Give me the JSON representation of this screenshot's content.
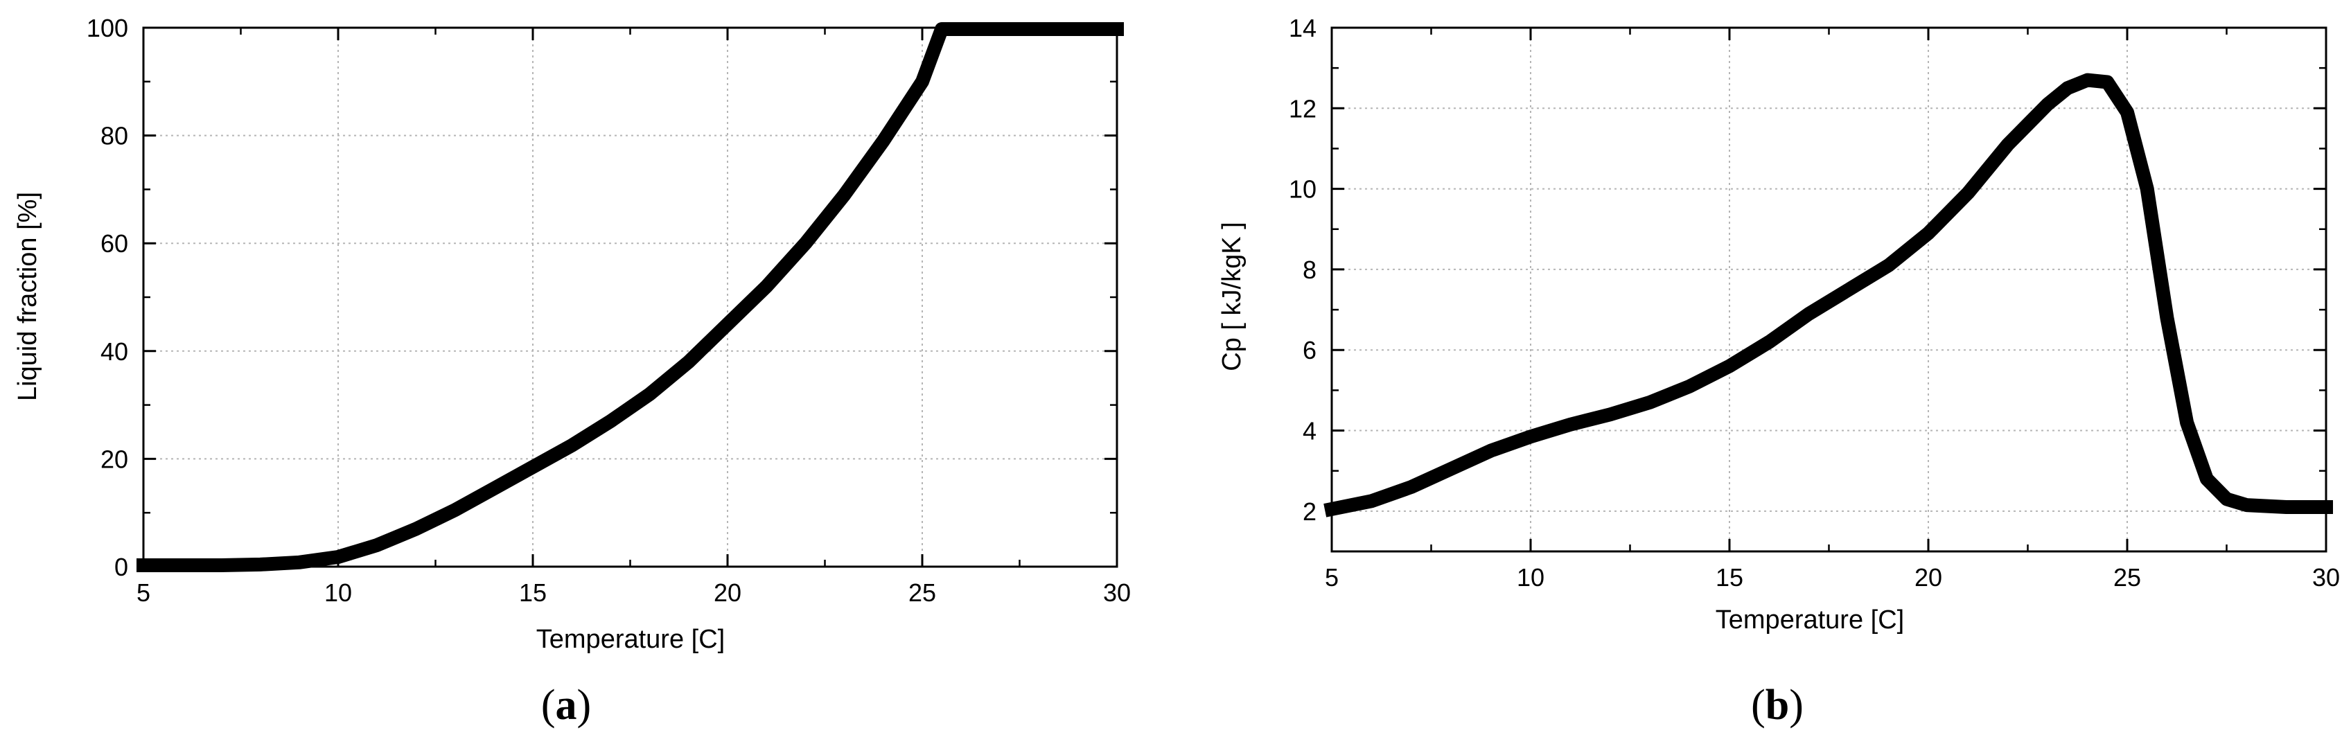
{
  "chart_data": [
    {
      "type": "line",
      "panel_label": {
        "open": "(",
        "letter": "a",
        "close": ")"
      },
      "xlabel": "Temperature [C]",
      "ylabel": "Liquid fraction [%]",
      "xlim": [
        5,
        30
      ],
      "ylim": [
        0,
        100
      ],
      "xticks": [
        5,
        10,
        15,
        20,
        25,
        30
      ],
      "yticks": [
        0,
        20,
        40,
        60,
        80,
        100
      ],
      "grid": true,
      "series": [
        {
          "x": [
            5,
            6,
            7,
            8,
            9,
            10,
            11,
            12,
            13,
            14,
            15,
            16,
            17,
            18,
            19,
            20,
            21,
            22,
            23,
            24,
            25,
            25.5,
            26,
            27,
            28,
            29,
            30
          ],
          "y": [
            0,
            0,
            0.2,
            0.4,
            0.8,
            1.8,
            4,
            7,
            10.5,
            14.5,
            18.5,
            22.5,
            27,
            32,
            38,
            45,
            52,
            60,
            69,
            79,
            90,
            100,
            100,
            100,
            100,
            100,
            100
          ]
        }
      ]
    },
    {
      "type": "line",
      "panel_label": {
        "open": "(",
        "letter": "b",
        "close": ")"
      },
      "xlabel": "Temperature [C]",
      "ylabel": "Cp [ kJ/kgK ]",
      "xlim": [
        5,
        30
      ],
      "ylim": [
        1,
        14
      ],
      "xticks": [
        5,
        10,
        15,
        20,
        25,
        30
      ],
      "yticks": [
        2,
        4,
        6,
        8,
        10,
        12,
        14
      ],
      "grid": true,
      "series": [
        {
          "x": [
            5,
            6,
            7,
            8,
            9,
            10,
            11,
            12,
            13,
            14,
            15,
            16,
            17,
            18,
            19,
            20,
            21,
            22,
            23,
            23.5,
            24,
            24.5,
            25,
            25.5,
            26,
            26.5,
            27,
            27.5,
            28,
            29,
            30
          ],
          "y": [
            2.05,
            2.25,
            2.6,
            3.05,
            3.5,
            3.85,
            4.15,
            4.4,
            4.7,
            5.1,
            5.6,
            6.2,
            6.9,
            7.5,
            8.1,
            8.9,
            9.9,
            11.1,
            12.1,
            12.5,
            12.7,
            12.65,
            11.9,
            10.0,
            6.8,
            4.2,
            2.8,
            2.3,
            2.15,
            2.1,
            2.1
          ]
        }
      ]
    }
  ]
}
